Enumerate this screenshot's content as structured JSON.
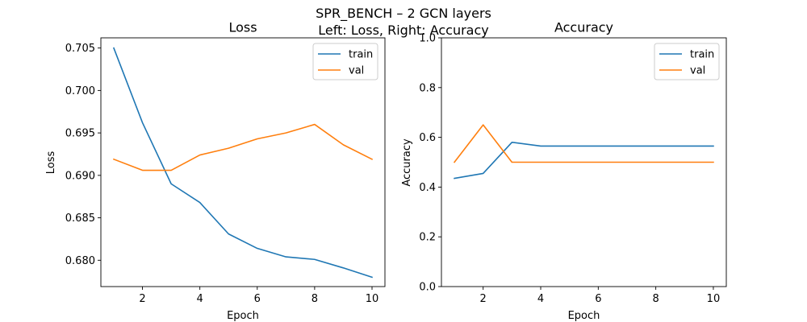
{
  "figure": {
    "suptitle_line1": "SPR_BENCH – 2 GCN layers",
    "suptitle_line2": "Left: Loss, Right: Accuracy"
  },
  "colors": {
    "train": "#1f77b4",
    "val": "#ff7f0e"
  },
  "chart_data": [
    {
      "type": "line",
      "title": "Loss",
      "xlabel": "Epoch",
      "ylabel": "Loss",
      "x": [
        1,
        2,
        3,
        4,
        5,
        6,
        7,
        8,
        9,
        10
      ],
      "xticks": [
        2,
        4,
        6,
        8,
        10
      ],
      "xlim": [
        0.55,
        10.45
      ],
      "ylim": [
        0.6769,
        0.7062
      ],
      "yticks": [
        0.68,
        0.685,
        0.69,
        0.695,
        0.7,
        0.705
      ],
      "ytick_labels": [
        "0.680",
        "0.685",
        "0.690",
        "0.695",
        "0.700",
        "0.705"
      ],
      "legend_location": "top-right",
      "grid": false,
      "series": [
        {
          "name": "train",
          "values": [
            0.705,
            0.6962,
            0.689,
            0.6868,
            0.6831,
            0.6814,
            0.6804,
            0.6801,
            0.6791,
            0.678
          ]
        },
        {
          "name": "val",
          "values": [
            0.6919,
            0.6906,
            0.6906,
            0.6924,
            0.6932,
            0.6943,
            0.695,
            0.696,
            0.6936,
            0.6919
          ]
        }
      ]
    },
    {
      "type": "line",
      "title": "Accuracy",
      "xlabel": "Epoch",
      "ylabel": "Accuracy",
      "x": [
        1,
        2,
        3,
        4,
        5,
        6,
        7,
        8,
        9,
        10
      ],
      "xticks": [
        2,
        4,
        6,
        8,
        10
      ],
      "xlim": [
        0.55,
        10.45
      ],
      "ylim": [
        0.0,
        1.0
      ],
      "yticks": [
        0.0,
        0.2,
        0.4,
        0.6,
        0.8,
        1.0
      ],
      "ytick_labels": [
        "0.0",
        "0.2",
        "0.4",
        "0.6",
        "0.8",
        "1.0"
      ],
      "legend_location": "top-right",
      "grid": false,
      "series": [
        {
          "name": "train",
          "values": [
            0.435,
            0.455,
            0.58,
            0.565,
            0.565,
            0.565,
            0.565,
            0.565,
            0.565,
            0.565
          ]
        },
        {
          "name": "val",
          "values": [
            0.5,
            0.65,
            0.5,
            0.5,
            0.5,
            0.5,
            0.5,
            0.5,
            0.5,
            0.5
          ]
        }
      ]
    }
  ]
}
